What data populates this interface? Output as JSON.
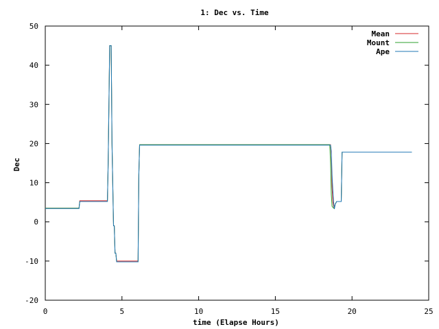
{
  "chart_data": {
    "type": "line",
    "title": "1: Dec vs. Time",
    "xlabel": "time (Elapse Hours)",
    "ylabel": "Dec",
    "xlim": [
      0,
      25
    ],
    "ylim": [
      -20,
      50
    ],
    "xticks": [
      0,
      5,
      10,
      15,
      20,
      25
    ],
    "yticks": [
      -20,
      -10,
      0,
      10,
      20,
      30,
      40,
      50
    ],
    "grid": false,
    "legend_position": "top-right",
    "series": [
      {
        "name": "Mean",
        "color": "#d62728",
        "points": [
          [
            0.0,
            3.5
          ],
          [
            2.2,
            3.5
          ],
          [
            2.25,
            5.4
          ],
          [
            4.05,
            5.4
          ],
          [
            4.1,
            15
          ],
          [
            4.2,
            45
          ],
          [
            4.3,
            45
          ],
          [
            4.35,
            20
          ],
          [
            4.45,
            -1
          ],
          [
            4.5,
            -1
          ],
          [
            4.55,
            -8
          ],
          [
            4.6,
            -8
          ],
          [
            4.65,
            -10
          ],
          [
            6.05,
            -10
          ],
          [
            6.1,
            12
          ],
          [
            6.15,
            19.7
          ],
          [
            18.6,
            19.7
          ],
          [
            18.65,
            17
          ],
          [
            18.7,
            9
          ],
          [
            18.75,
            5
          ],
          [
            18.8,
            4
          ],
          [
            18.85,
            3.5
          ],
          [
            18.9,
            4.5
          ],
          [
            19.0,
            5.2
          ],
          [
            19.3,
            5.2
          ],
          [
            19.35,
            17.8
          ],
          [
            23.9,
            17.8
          ]
        ]
      },
      {
        "name": "Mount",
        "color": "#2ca02c",
        "points": [
          [
            0.0,
            3.5
          ],
          [
            2.2,
            3.5
          ],
          [
            2.25,
            5.2
          ],
          [
            4.05,
            5.2
          ],
          [
            4.1,
            15
          ],
          [
            4.2,
            45
          ],
          [
            4.3,
            45
          ],
          [
            4.35,
            20
          ],
          [
            4.45,
            -1
          ],
          [
            4.5,
            -1
          ],
          [
            4.55,
            -8
          ],
          [
            4.6,
            -8
          ],
          [
            4.65,
            -10.2
          ],
          [
            6.05,
            -10.2
          ],
          [
            6.1,
            12
          ],
          [
            6.15,
            19.7
          ],
          [
            18.55,
            19.7
          ],
          [
            18.6,
            15
          ],
          [
            18.65,
            7
          ],
          [
            18.7,
            4
          ],
          [
            18.8,
            3.5
          ],
          [
            18.85,
            3.5
          ],
          [
            18.9,
            4.5
          ],
          [
            19.0,
            5.2
          ],
          [
            19.3,
            5.2
          ],
          [
            19.35,
            17.8
          ],
          [
            23.9,
            17.8
          ]
        ]
      },
      {
        "name": "Ape",
        "color": "#1f77b4",
        "points": [
          [
            0.0,
            3.4
          ],
          [
            2.2,
            3.4
          ],
          [
            2.25,
            5.2
          ],
          [
            4.05,
            5.2
          ],
          [
            4.1,
            15
          ],
          [
            4.2,
            45
          ],
          [
            4.3,
            45
          ],
          [
            4.35,
            20
          ],
          [
            4.45,
            -1
          ],
          [
            4.5,
            -1
          ],
          [
            4.55,
            -8
          ],
          [
            4.6,
            -8
          ],
          [
            4.65,
            -10.2
          ],
          [
            6.05,
            -10.2
          ],
          [
            6.1,
            12
          ],
          [
            6.15,
            19.6
          ],
          [
            18.6,
            19.6
          ],
          [
            18.65,
            18
          ],
          [
            18.7,
            12
          ],
          [
            18.75,
            8
          ],
          [
            18.8,
            5
          ],
          [
            18.85,
            3.3
          ],
          [
            18.9,
            4.5
          ],
          [
            19.0,
            5.2
          ],
          [
            19.3,
            5.2
          ],
          [
            19.35,
            17.8
          ],
          [
            23.9,
            17.8
          ]
        ]
      }
    ]
  }
}
